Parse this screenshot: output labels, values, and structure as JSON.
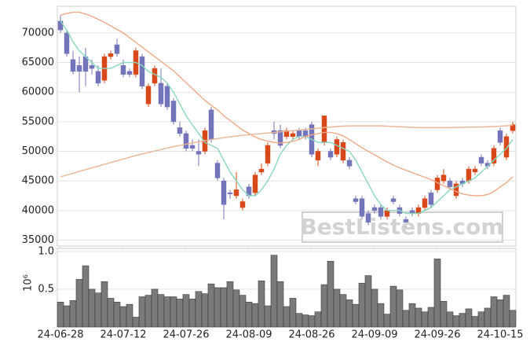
{
  "chart_data": [
    {
      "type": "candlestick",
      "open": [
        72000,
        70000,
        65500,
        64500,
        66000,
        64500,
        63500,
        62000,
        66000,
        68000,
        64500,
        63500,
        63000,
        66000,
        58000,
        61500,
        61500,
        61000,
        58500,
        54000,
        53000,
        51000,
        50000,
        50000,
        57000,
        48000,
        45000,
        43000,
        42500,
        40500,
        44000,
        43000,
        46500,
        48000,
        53500,
        53500,
        52500,
        52500,
        53500,
        53500,
        54500,
        48500,
        51500,
        50000,
        49500,
        48500,
        48500,
        42000,
        42000,
        39500,
        40500,
        40500,
        39000,
        42000,
        40500,
        38500,
        40000,
        39500,
        40500,
        43000,
        43500,
        45000,
        45000,
        42500,
        45000,
        45000,
        46500,
        49000,
        48000,
        48000,
        53500,
        49000,
        53500
      ],
      "high": [
        73000,
        70500,
        67000,
        66000,
        67500,
        65500,
        64500,
        66500,
        67000,
        69000,
        65500,
        64000,
        67500,
        66500,
        61500,
        64500,
        64000,
        61500,
        59000,
        55000,
        53500,
        52000,
        52000,
        54000,
        57500,
        48500,
        45500,
        43500,
        46500,
        42000,
        44500,
        46500,
        48000,
        51500,
        55000,
        54500,
        54000,
        53500,
        54000,
        54000,
        55000,
        50500,
        56000,
        50500,
        52500,
        52000,
        49000,
        42500,
        42500,
        40000,
        41000,
        41000,
        40500,
        42500,
        41000,
        39000,
        40500,
        41000,
        42500,
        43500,
        46000,
        47000,
        45500,
        45000,
        45500,
        47500,
        47500,
        49500,
        48500,
        51000,
        54000,
        53000,
        55000
      ],
      "low": [
        70000,
        66000,
        63000,
        60000,
        61000,
        63000,
        61000,
        61500,
        65500,
        66000,
        62500,
        62500,
        62500,
        60500,
        57500,
        61000,
        57500,
        57000,
        54500,
        52500,
        50000,
        50000,
        47500,
        49500,
        51500,
        45000,
        38500,
        42000,
        42000,
        40000,
        42000,
        42500,
        46000,
        47500,
        52000,
        50500,
        52000,
        52000,
        52000,
        52000,
        49000,
        47500,
        51000,
        48500,
        49000,
        48000,
        47000,
        41000,
        38500,
        37500,
        39500,
        38500,
        38500,
        41000,
        39000,
        37000,
        39000,
        39000,
        40000,
        40500,
        43000,
        44500,
        43500,
        42000,
        44000,
        44500,
        46000,
        47500,
        47000,
        47500,
        51000,
        48500,
        53000
      ],
      "close": [
        70500,
        66500,
        63500,
        63500,
        63500,
        64000,
        61500,
        66000,
        66500,
        66500,
        63000,
        63000,
        67000,
        61000,
        61000,
        64000,
        58000,
        57500,
        55000,
        53000,
        50500,
        50500,
        49500,
        53500,
        52000,
        45500,
        41000,
        42800,
        43500,
        41500,
        42500,
        46000,
        47000,
        51000,
        53000,
        51000,
        53500,
        53000,
        52500,
        52500,
        49500,
        50000,
        56000,
        49000,
        52000,
        51500,
        47500,
        41500,
        39000,
        38000,
        40000,
        39000,
        40000,
        41500,
        39500,
        38000,
        39500,
        40500,
        42000,
        41000,
        45500,
        46000,
        44000,
        44500,
        44500,
        47000,
        47000,
        48000,
        47500,
        50500,
        51500,
        52500,
        54500
      ],
      "up_color": "#d9481a",
      "down_color": "#7474ba",
      "series": [
        {
          "color": "#86d8bd",
          "values": [
            72000,
            70500,
            68500,
            67000,
            66000,
            65000,
            64000,
            64000,
            64000,
            64500,
            65000,
            65000,
            65000,
            64500,
            63500,
            63000,
            62500,
            61500,
            60000,
            58000,
            56000,
            54500,
            53000,
            51500,
            51000,
            50500,
            48500,
            46500,
            45000,
            43500,
            42500,
            42500,
            43500,
            45000,
            47000,
            49500,
            51000,
            52000,
            52500,
            52500,
            52000,
            51500,
            51500,
            51500,
            51000,
            50500,
            50000,
            48500,
            46500,
            44500,
            42500,
            41000,
            40000,
            40000,
            40000,
            39500,
            39500,
            39500,
            40000,
            40500,
            41500,
            42500,
            43500,
            44000,
            44500,
            45000,
            45500,
            46500,
            47500,
            48500,
            49500,
            50500,
            52000
          ]
        },
        {
          "color": "#f0a987",
          "values": [
            73000,
            73300,
            73500,
            73500,
            73200,
            72800,
            72300,
            71800,
            71200,
            70600,
            70000,
            69200,
            68400,
            67600,
            66800,
            66000,
            65200,
            64400,
            63600,
            62600,
            61600,
            60600,
            59600,
            58600,
            57800,
            57000,
            56000,
            55200,
            54400,
            53600,
            53000,
            52400,
            52000,
            51700,
            51500,
            51400,
            51500,
            51700,
            52000,
            52500,
            52800,
            53000,
            53200,
            53200,
            53000,
            52600,
            52000,
            51300,
            50600,
            50000,
            49400,
            48800,
            48200,
            47700,
            47200,
            46800,
            46400,
            46000,
            45600,
            45200,
            44700,
            44200,
            43700,
            43200,
            42800,
            42600,
            42500,
            42500,
            42700,
            43200,
            44000,
            44700,
            45700
          ]
        },
        {
          "color": "#e9b595",
          "values": [
            45700,
            46000,
            46300,
            46600,
            46900,
            47200,
            47500,
            47800,
            48100,
            48400,
            48700,
            49000,
            49300,
            49550,
            49800,
            50050,
            50300,
            50550,
            50800,
            51000,
            51200,
            51400,
            51600,
            51800,
            52000,
            52150,
            52300,
            52450,
            52600,
            52700,
            52800,
            52900,
            53000,
            53100,
            53200,
            53300,
            53400,
            53500,
            53600,
            53700,
            53800,
            53900,
            54000,
            54100,
            54200,
            54250,
            54300,
            54300,
            54300,
            54300,
            54300,
            54300,
            54250,
            54200,
            54150,
            54100,
            54050,
            54000,
            54000,
            54000,
            54000,
            54000,
            54000,
            54050,
            54050,
            54100,
            54100,
            54100,
            54150,
            54200,
            54250,
            54300,
            54400
          ]
        }
      ],
      "ylim": [
        34000,
        74500
      ],
      "yticks": [
        35000,
        40000,
        45000,
        50000,
        55000,
        60000,
        65000,
        70000
      ],
      "grid": true,
      "watermark": "BestListens.com"
    },
    {
      "type": "bar",
      "categories": [
        "24-06-28",
        null,
        null,
        null,
        null,
        null,
        null,
        null,
        null,
        null,
        "24-07-12",
        null,
        null,
        null,
        null,
        null,
        null,
        null,
        null,
        null,
        "24-07-26",
        null,
        null,
        null,
        null,
        null,
        null,
        null,
        null,
        null,
        "24-08-09",
        null,
        null,
        null,
        null,
        null,
        null,
        null,
        null,
        null,
        "24-08-26",
        null,
        null,
        null,
        null,
        null,
        null,
        null,
        null,
        null,
        "24-09-09",
        null,
        null,
        null,
        null,
        null,
        null,
        null,
        null,
        null,
        "24-09-26",
        null,
        null,
        null,
        null,
        null,
        null,
        null,
        null,
        null,
        "24-10-15",
        null,
        null
      ],
      "values": [
        0.33,
        0.28,
        0.35,
        0.63,
        0.81,
        0.5,
        0.45,
        0.6,
        0.38,
        0.33,
        0.27,
        0.3,
        0.13,
        0.4,
        0.42,
        0.5,
        0.43,
        0.4,
        0.4,
        0.37,
        0.43,
        0.37,
        0.47,
        0.44,
        0.57,
        0.52,
        0.52,
        0.6,
        0.49,
        0.42,
        0.33,
        0.31,
        0.61,
        0.28,
        0.95,
        0.6,
        0.27,
        0.38,
        0.18,
        0.16,
        0.15,
        0.2,
        0.56,
        0.87,
        0.5,
        0.43,
        0.36,
        0.3,
        0.58,
        0.68,
        0.5,
        0.31,
        0.17,
        0.54,
        0.49,
        0.22,
        0.31,
        0.25,
        0.2,
        0.26,
        0.9,
        0.34,
        0.2,
        0.15,
        0.18,
        0.24,
        0.14,
        0.2,
        0.25,
        0.4,
        0.36,
        0.42,
        0.22
      ],
      "color": "#7a7a7a",
      "ylabel": "10⁶",
      "ylim": [
        0,
        1.04
      ],
      "yticks": [
        0.5,
        {
          "value": 1,
          "label": "1.0"
        }
      ],
      "grid": true
    }
  ]
}
